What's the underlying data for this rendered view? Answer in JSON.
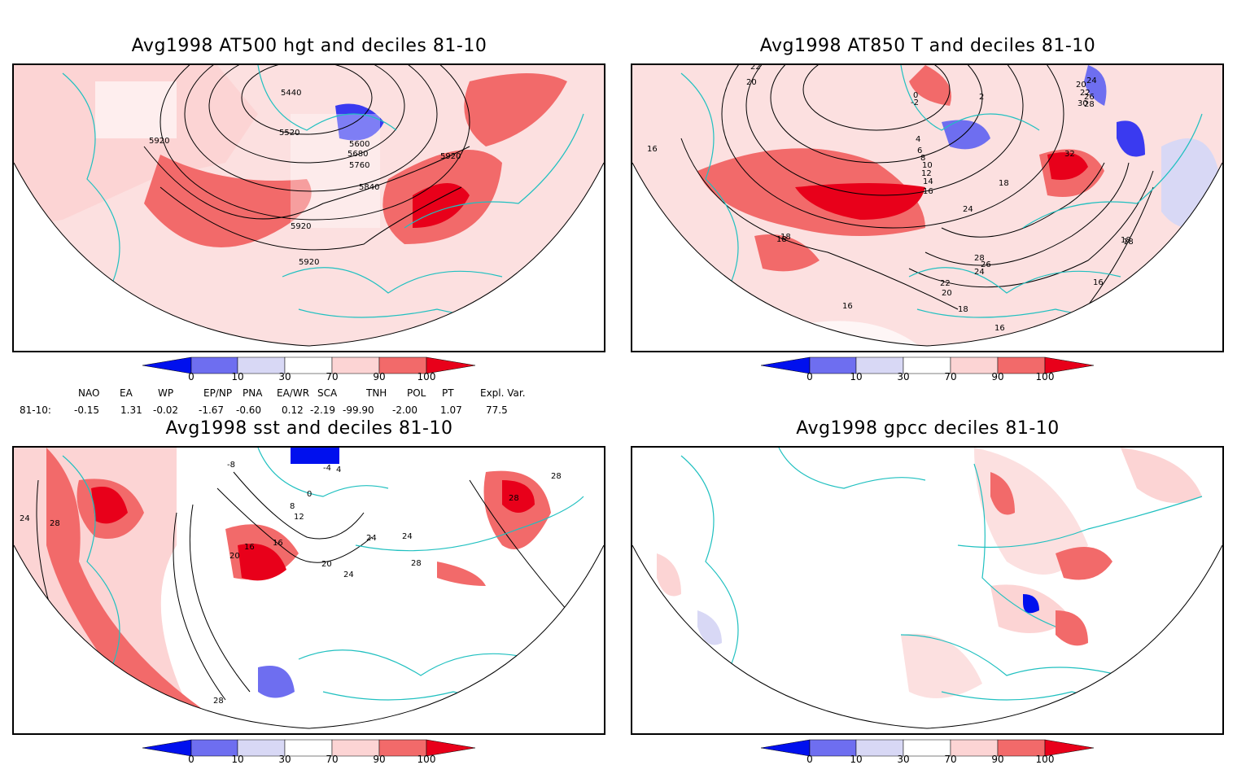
{
  "panels": [
    {
      "title": "Avg1998 AT500 hgt and deciles 81-10",
      "contour_labels": [
        "5440",
        "5520",
        "5600",
        "5680",
        "5760",
        "5840",
        "5920",
        "5920",
        "5920",
        "5920"
      ]
    },
    {
      "title": "Avg1998 AT850 T and deciles 81-10",
      "contour_labels": [
        "22",
        "20",
        "16",
        "18",
        "16",
        "14",
        "12",
        "10",
        "8",
        "6",
        "4",
        "2",
        "0",
        "-2",
        "20",
        "22",
        "24",
        "26",
        "28",
        "30",
        "32",
        "24",
        "18",
        "18",
        "16",
        "16",
        "18",
        "20",
        "22",
        "24",
        "26",
        "28",
        "18",
        "16",
        "18"
      ]
    },
    {
      "title": "Avg1998 sst and deciles 81-10",
      "contour_labels": [
        "24",
        "28",
        "-8",
        "-4",
        "0",
        "4",
        "8",
        "12",
        "16",
        "20",
        "24",
        "28",
        "16",
        "24",
        "20",
        "24",
        "28",
        "28",
        "28"
      ]
    },
    {
      "title": "Avg1998 gpcc deciles 81-10",
      "contour_labels": []
    }
  ],
  "colorbar": {
    "tick_labels": [
      "0",
      "10",
      "30",
      "70",
      "90",
      "100"
    ],
    "colors": [
      "#0010ee",
      "#6e6ef0",
      "#d8d8f5",
      "#ffffff",
      "#fcd4d4",
      "#f26a6a",
      "#e8001a"
    ]
  },
  "indices": {
    "headers": [
      "NAO",
      "EA",
      "WP",
      "EP/NP",
      "PNA",
      "EA/WR",
      "SCA",
      "TNH",
      "POL",
      "PT",
      "Expl. Var."
    ],
    "row_label": "81-10:",
    "values": [
      "-0.15",
      "1.31",
      "-0.02",
      "-1.67",
      "-0.60",
      "0.12",
      "-2.19",
      "-99.90",
      "-2.00",
      "1.07",
      "77.5"
    ]
  }
}
